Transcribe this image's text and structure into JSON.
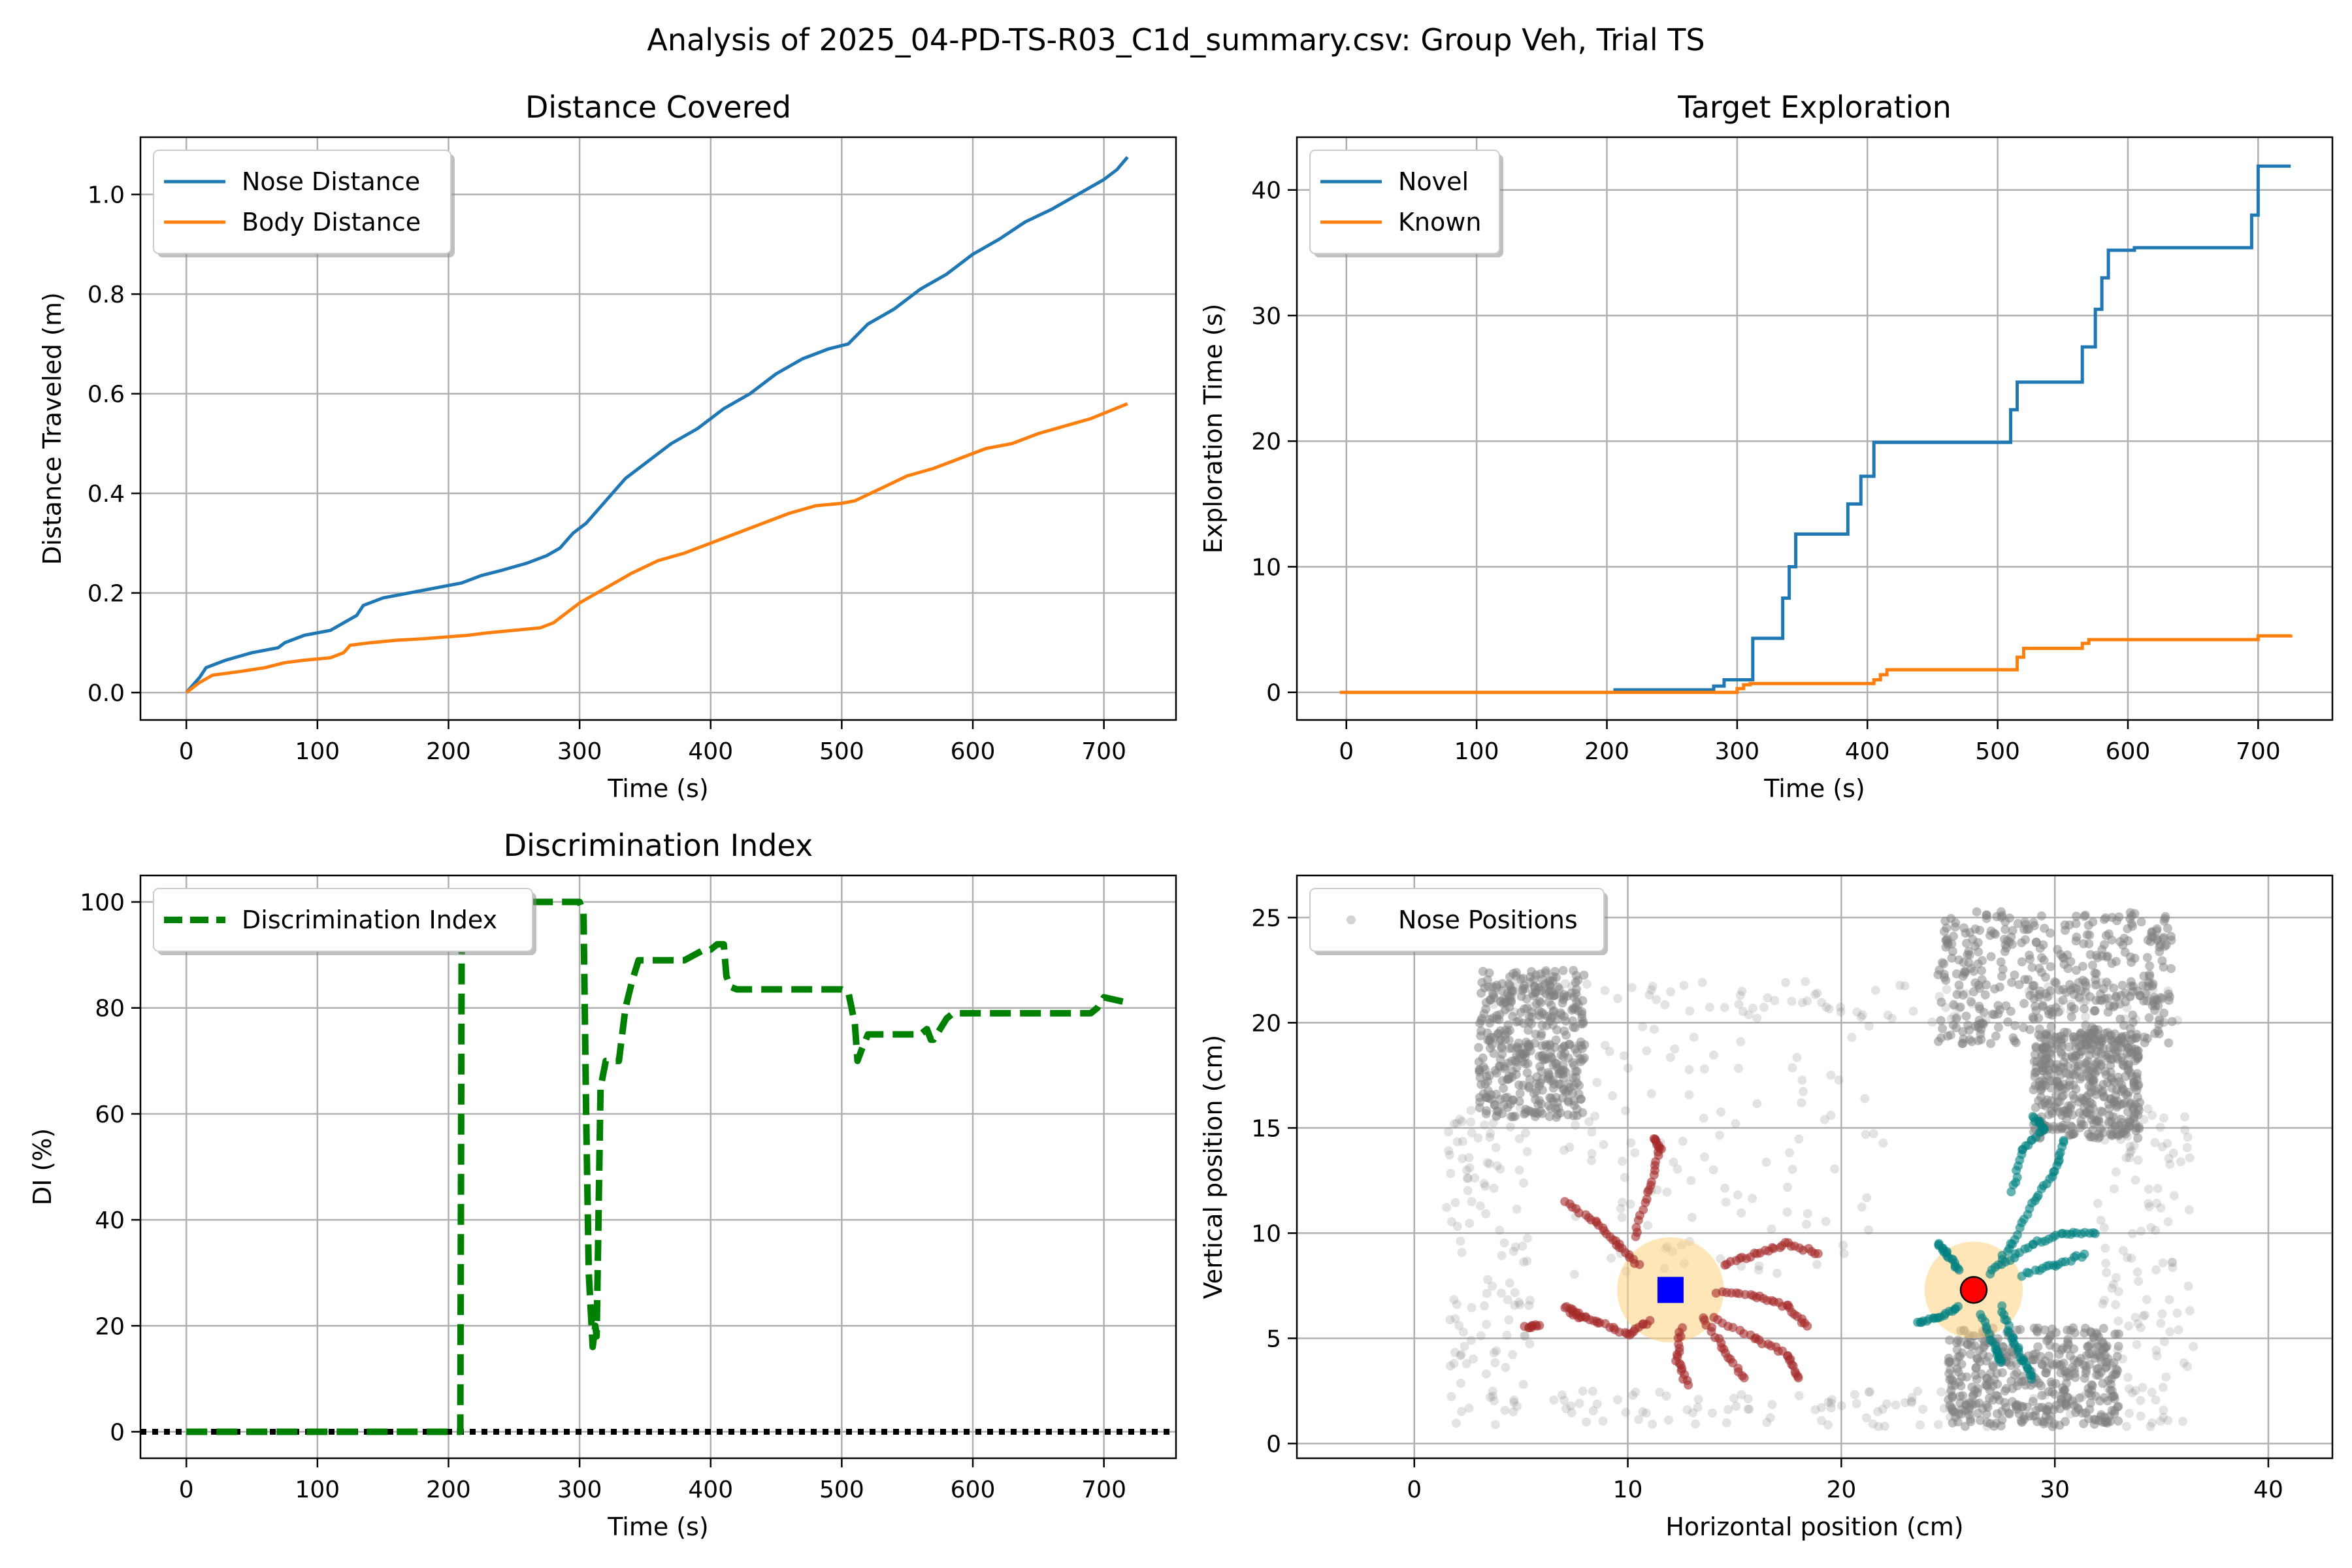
{
  "figure_title": "Analysis of 2025_04-PD-TS-R03_C1d_summary.csv: Group Veh, Trial TS",
  "colors": {
    "blue": "#1f77b4",
    "orange": "#ff7f0e",
    "green": "#008000",
    "grid": "#b0b0b0",
    "gray": "#808080",
    "brown": "#a52a2a",
    "teal": "#008080",
    "zone": "#ffd27f",
    "known_marker": "#0000ff",
    "novel_marker": "#ff0000"
  },
  "chart_data": [
    {
      "type": "line",
      "title": "Distance Covered",
      "xlabel": "Time (s)",
      "ylabel": "Distance Traveled (m)",
      "xlim": [
        -35,
        755
      ],
      "ylim": [
        -0.055,
        1.115
      ],
      "xticks": [
        0,
        100,
        200,
        300,
        400,
        500,
        600,
        700
      ],
      "yticks": [
        0.0,
        0.2,
        0.4,
        0.6,
        0.8,
        1.0
      ],
      "ytick_labels": [
        "0.0",
        "0.2",
        "0.4",
        "0.6",
        "0.8",
        "1.0"
      ],
      "grid": true,
      "legend": "upper left",
      "series": [
        {
          "name": "Nose Distance",
          "color": "#1f77b4",
          "x": [
            0,
            10,
            15,
            30,
            50,
            70,
            75,
            90,
            110,
            120,
            130,
            135,
            150,
            170,
            190,
            210,
            225,
            240,
            260,
            275,
            285,
            295,
            305,
            315,
            325,
            335,
            350,
            370,
            390,
            410,
            430,
            450,
            470,
            490,
            505,
            520,
            540,
            560,
            580,
            600,
            620,
            640,
            660,
            680,
            700,
            710,
            718
          ],
          "y": [
            0.0,
            0.03,
            0.05,
            0.065,
            0.08,
            0.09,
            0.1,
            0.115,
            0.125,
            0.14,
            0.155,
            0.175,
            0.19,
            0.2,
            0.21,
            0.22,
            0.235,
            0.245,
            0.26,
            0.275,
            0.29,
            0.32,
            0.34,
            0.37,
            0.4,
            0.43,
            0.46,
            0.5,
            0.53,
            0.57,
            0.6,
            0.64,
            0.67,
            0.69,
            0.7,
            0.74,
            0.77,
            0.81,
            0.84,
            0.88,
            0.91,
            0.945,
            0.97,
            1.0,
            1.03,
            1.05,
            1.075
          ]
        },
        {
          "name": "Body Distance",
          "color": "#ff7f0e",
          "x": [
            0,
            10,
            20,
            40,
            60,
            75,
            90,
            110,
            120,
            125,
            140,
            160,
            180,
            200,
            215,
            230,
            250,
            270,
            280,
            290,
            300,
            320,
            340,
            360,
            380,
            400,
            420,
            440,
            460,
            480,
            500,
            510,
            530,
            550,
            570,
            590,
            610,
            630,
            650,
            670,
            690,
            718
          ],
          "y": [
            0.0,
            0.02,
            0.035,
            0.042,
            0.05,
            0.06,
            0.065,
            0.07,
            0.08,
            0.095,
            0.1,
            0.105,
            0.108,
            0.112,
            0.115,
            0.12,
            0.125,
            0.13,
            0.14,
            0.16,
            0.18,
            0.21,
            0.24,
            0.265,
            0.28,
            0.3,
            0.32,
            0.34,
            0.36,
            0.375,
            0.38,
            0.385,
            0.41,
            0.435,
            0.45,
            0.47,
            0.49,
            0.5,
            0.52,
            0.535,
            0.55,
            0.58
          ]
        }
      ]
    },
    {
      "type": "line",
      "title": "Target Exploration",
      "xlabel": "Time (s)",
      "ylabel": "Exploration Time (s)",
      "xlim": [
        -38,
        757
      ],
      "ylim": [
        -2.2,
        44.2
      ],
      "xticks": [
        0,
        100,
        200,
        300,
        400,
        500,
        600,
        700
      ],
      "yticks": [
        0,
        10,
        20,
        30,
        40
      ],
      "grid": true,
      "legend": "upper left",
      "series": [
        {
          "name": "Novel",
          "color": "#1f77b4",
          "x": [
            205,
            270,
            282,
            290,
            300,
            308,
            312,
            320,
            325,
            335,
            340,
            345,
            352,
            360,
            380,
            385,
            395,
            400,
            405,
            410,
            420,
            460,
            500,
            505,
            510,
            515,
            520,
            525,
            555,
            565,
            570,
            575,
            580,
            585,
            590,
            605,
            640,
            680,
            690,
            695,
            700,
            705,
            725
          ],
          "y": [
            0.2,
            0.2,
            0.5,
            1.0,
            1.0,
            1.0,
            4.3,
            4.3,
            4.3,
            7.5,
            10,
            12.6,
            12.6,
            12.6,
            12.6,
            15.0,
            17.2,
            17.2,
            19.9,
            19.9,
            19.9,
            19.9,
            19.9,
            19.9,
            22.5,
            24.7,
            24.7,
            24.7,
            24.7,
            27.5,
            27.5,
            30.5,
            33.0,
            35.2,
            35.2,
            35.4,
            35.4,
            35.4,
            35.4,
            38.0,
            41.9,
            41.9,
            41.9
          ]
        },
        {
          "name": "Known",
          "color": "#ff7f0e",
          "x": [
            -5,
            150,
            290,
            300,
            305,
            310,
            315,
            350,
            400,
            405,
            410,
            415,
            420,
            460,
            500,
            510,
            515,
            520,
            560,
            565,
            570,
            575,
            600,
            650,
            690,
            700,
            725
          ],
          "y": [
            0,
            0,
            0,
            0.3,
            0.6,
            0.7,
            0.7,
            0.7,
            0.7,
            1.0,
            1.4,
            1.8,
            1.8,
            1.8,
            1.8,
            1.8,
            2.8,
            3.5,
            3.5,
            3.9,
            4.2,
            4.2,
            4.2,
            4.2,
            4.2,
            4.5,
            4.6
          ]
        }
      ]
    },
    {
      "type": "line",
      "title": "Discrimination Index",
      "xlabel": "Time (s)",
      "ylabel": "DI (%)",
      "xlim": [
        -35,
        755
      ],
      "ylim": [
        -5,
        105
      ],
      "xticks": [
        0,
        100,
        200,
        300,
        400,
        500,
        600,
        700
      ],
      "yticks": [
        0,
        20,
        40,
        60,
        80,
        100
      ],
      "grid": true,
      "legend": "upper left",
      "reference_line": {
        "y": 0,
        "style": "dotted",
        "color": "#000000"
      },
      "series": [
        {
          "name": "Discrimination Index",
          "color": "#008000",
          "style": "dashed",
          "x": [
            0,
            100,
            200,
            209,
            210,
            212,
            300,
            303,
            305,
            307,
            310,
            312,
            313,
            316,
            320,
            330,
            335,
            340,
            345,
            350,
            380,
            395,
            400,
            405,
            410,
            412,
            415,
            420,
            430,
            450,
            500,
            505,
            510,
            512,
            515,
            520,
            540,
            560,
            565,
            568,
            570,
            580,
            585,
            600,
            650,
            690,
            695,
            700,
            718
          ],
          "y": [
            0,
            0,
            0,
            0,
            90,
            100,
            100,
            98,
            60,
            30,
            16,
            20,
            18,
            65,
            70,
            70,
            80,
            85,
            89,
            89,
            89,
            91,
            91,
            92,
            92,
            86,
            84,
            83.5,
            83.5,
            83.5,
            83.5,
            83,
            77,
            70,
            72,
            75,
            75,
            75,
            76,
            74,
            74,
            78,
            79,
            79,
            79,
            79,
            80,
            82,
            81
          ]
        }
      ]
    },
    {
      "type": "scatter",
      "title": "",
      "xlabel": "Horizontal position (cm)",
      "ylabel": "Vertical position (cm)",
      "xlim": [
        -5.5,
        43.0
      ],
      "ylim": [
        -0.7,
        27.0
      ],
      "xticks": [
        0,
        10,
        20,
        30,
        40
      ],
      "yticks": [
        0,
        5,
        10,
        15,
        20,
        25
      ],
      "grid": true,
      "legend": "upper left",
      "series": [
        {
          "name": "Nose Positions",
          "color": "#808080"
        }
      ],
      "objects": {
        "known": {
          "x": 12.0,
          "y": 7.3,
          "zone_radius": 2.5,
          "marker": "square",
          "color": "#0000ff"
        },
        "novel": {
          "x": 26.2,
          "y": 7.3,
          "zone_radius": 2.3,
          "marker": "circle",
          "color": "#ff0000"
        }
      },
      "clusters": [
        {
          "x": [
            3.0,
            8.0
          ],
          "y": [
            15.5,
            22.5
          ],
          "density": "dense"
        },
        {
          "x": [
            24.5,
            35.5
          ],
          "y": [
            19.0,
            25.3
          ],
          "density": "dense"
        },
        {
          "x": [
            29.0,
            34.0
          ],
          "y": [
            14.5,
            19.5
          ],
          "density": "dense"
        },
        {
          "x": [
            3.5,
            36.0
          ],
          "y": [
            20.0,
            22.0
          ],
          "density": "sparse"
        },
        {
          "x": [
            1.5,
            36.0
          ],
          "y": [
            0.8,
            2.5
          ],
          "density": "sparse"
        },
        {
          "x": [
            1.5,
            5.5
          ],
          "y": [
            2.0,
            16.0
          ],
          "density": "sparse"
        },
        {
          "x": [
            32.0,
            36.5
          ],
          "y": [
            2.0,
            16.0
          ],
          "density": "sparse"
        },
        {
          "x": [
            25.0,
            33.0
          ],
          "y": [
            0.8,
            5.5
          ],
          "density": "dense"
        },
        {
          "x": [
            7.0,
            22.0
          ],
          "y": [
            8.0,
            20.0
          ],
          "density": "sparse"
        }
      ],
      "near_known_strokes": [
        [
          [
            10.5,
            8.5
          ],
          [
            9.5,
            9.5
          ],
          [
            8.5,
            10.5
          ],
          [
            7.0,
            11.5
          ]
        ],
        [
          [
            10.3,
            9.8
          ],
          [
            11.0,
            12.0
          ],
          [
            11.5,
            14.0
          ],
          [
            11.2,
            14.5
          ]
        ],
        [
          [
            11.0,
            5.8
          ],
          [
            10.0,
            5.2
          ],
          [
            8.5,
            5.8
          ],
          [
            7.2,
            6.2
          ]
        ],
        [
          [
            12.5,
            5.5
          ],
          [
            12.3,
            4.0
          ],
          [
            12.8,
            2.8
          ]
        ],
        [
          [
            13.5,
            6.0
          ],
          [
            14.5,
            4.5
          ],
          [
            15.5,
            3.0
          ]
        ],
        [
          [
            14.2,
            7.2
          ],
          [
            16.0,
            7.0
          ],
          [
            17.5,
            6.5
          ],
          [
            18.5,
            5.5
          ]
        ],
        [
          [
            14.5,
            8.5
          ],
          [
            16.0,
            9.0
          ],
          [
            17.5,
            9.5
          ],
          [
            19.0,
            9.0
          ]
        ],
        [
          [
            14.0,
            6.0
          ],
          [
            16.0,
            5.0
          ],
          [
            17.5,
            4.2
          ],
          [
            18.0,
            3.0
          ]
        ],
        [
          [
            5.8,
            5.6
          ],
          [
            5.2,
            5.5
          ]
        ],
        [
          [
            7.0,
            6.5
          ],
          [
            8.0,
            6.0
          ]
        ]
      ],
      "near_novel_strokes": [
        [
          [
            27.0,
            8.0
          ],
          [
            28.0,
            9.5
          ],
          [
            29.0,
            11.5
          ],
          [
            30.0,
            13.0
          ],
          [
            30.5,
            14.5
          ]
        ],
        [
          [
            27.5,
            8.5
          ],
          [
            29.0,
            9.5
          ],
          [
            30.5,
            10.0
          ],
          [
            32.0,
            10.0
          ]
        ],
        [
          [
            27.5,
            6.5
          ],
          [
            28.0,
            5.0
          ],
          [
            28.5,
            4.0
          ],
          [
            29.0,
            3.0
          ]
        ],
        [
          [
            25.5,
            6.5
          ],
          [
            24.5,
            6.0
          ],
          [
            23.5,
            5.7
          ]
        ],
        [
          [
            25.5,
            8.2
          ],
          [
            25.0,
            9.0
          ],
          [
            24.5,
            9.5
          ]
        ],
        [
          [
            28.5,
            8.0
          ],
          [
            30.0,
            8.5
          ],
          [
            31.5,
            9.0
          ]
        ],
        [
          [
            28.0,
            12.0
          ],
          [
            28.5,
            14.0
          ],
          [
            29.5,
            15.0
          ],
          [
            29.0,
            15.5
          ]
        ],
        [
          [
            26.5,
            6.2
          ],
          [
            27.2,
            4.5
          ],
          [
            27.5,
            3.8
          ]
        ]
      ]
    }
  ]
}
